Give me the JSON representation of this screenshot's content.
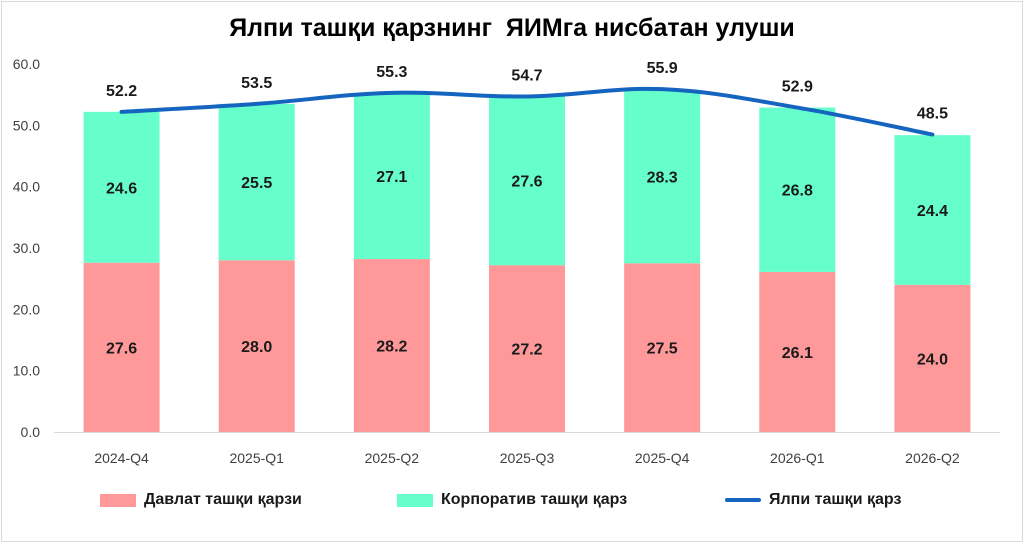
{
  "chart_data": {
    "type": "bar",
    "stacked": true,
    "title": "Ялпи ташқи қарзнинг  ЯИМга нисбатан улуши",
    "categories": [
      "2024-Q4",
      "2025-Q1",
      "2025-Q2",
      "2025-Q3",
      "2025-Q4",
      "2026-Q1",
      "2026-Q2"
    ],
    "series": [
      {
        "name": "Давлат ташқи қарзи",
        "type": "bar",
        "color": "#ff9999",
        "values": [
          27.6,
          28.0,
          28.2,
          27.2,
          27.5,
          26.1,
          24.0
        ],
        "labels": [
          "27.6",
          "28.0",
          "28.2",
          "27.2",
          "27.5",
          "26.1",
          "24.0"
        ]
      },
      {
        "name": "Корпоратив ташқи қарз",
        "type": "bar",
        "color": "#66ffcc",
        "values": [
          24.6,
          25.5,
          27.1,
          27.6,
          28.3,
          26.8,
          24.4
        ],
        "labels": [
          "24.6",
          "25.5",
          "27.1",
          "27.6",
          "28.3",
          "26.8",
          "24.4"
        ]
      },
      {
        "name": "Ялпи ташқи қарз",
        "type": "line",
        "color": "#1565c0",
        "values": [
          52.2,
          53.5,
          55.3,
          54.7,
          55.9,
          52.9,
          48.5
        ],
        "labels": [
          "52.2",
          "53.5",
          "55.3",
          "54.7",
          "55.9",
          "52.9",
          "48.5"
        ]
      }
    ],
    "ylim": [
      0,
      60
    ],
    "yticks": [
      "0.0",
      "10.0",
      "20.0",
      "30.0",
      "40.0",
      "50.0",
      "60.0"
    ],
    "xlabel": "",
    "ylabel": "",
    "grid": false,
    "legend": "bottom"
  }
}
